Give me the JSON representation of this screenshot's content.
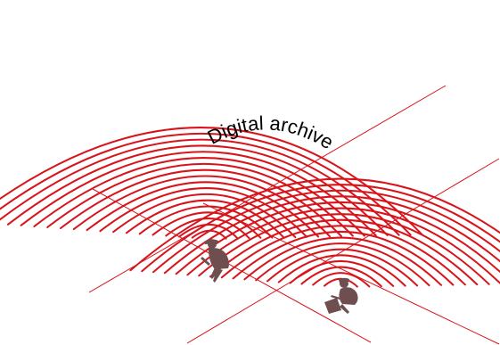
{
  "title": "Digital archive",
  "colors": {
    "wave": "#d8141b",
    "grid": "#d8141b",
    "figure": "#6e4e4f",
    "background": "#ffffff"
  },
  "icons": {
    "reader_left": "person-reading-icon",
    "reader_right": "person-with-laptop-icon"
  }
}
